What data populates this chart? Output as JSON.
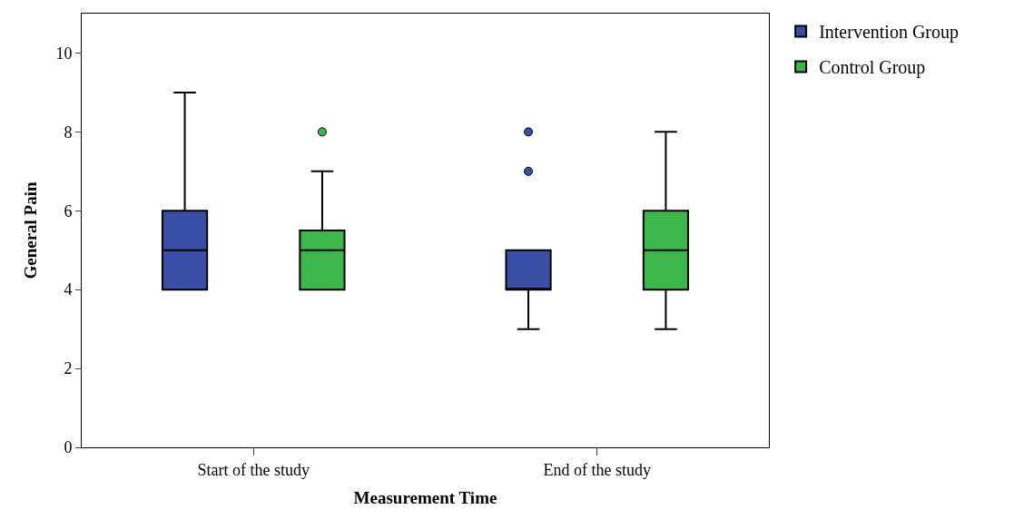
{
  "chart_data": {
    "type": "box",
    "xlabel": "Measurement Time",
    "ylabel": "General Pain",
    "categories": [
      "Start of the study",
      "End of the study"
    ],
    "ylim": [
      0,
      11
    ],
    "yticks": [
      0,
      2,
      4,
      6,
      8,
      10
    ],
    "legend": "top right",
    "series": [
      {
        "name": "Intervention Group",
        "color": "#3b4ea6",
        "boxes": [
          {
            "low": 4,
            "q1": 4,
            "median": 5,
            "q3": 6,
            "high": 9
          },
          {
            "low": 3,
            "q1": 4,
            "median": 4,
            "q3": 5,
            "high": 5,
            "outliers": [
              7,
              8
            ]
          }
        ]
      },
      {
        "name": "Control Group",
        "color": "#3cb54a",
        "boxes": [
          {
            "low": 4,
            "q1": 4,
            "median": 5,
            "q3": 5.5,
            "high": 7,
            "outliers": [
              8
            ]
          },
          {
            "low": 3,
            "q1": 4,
            "median": 5,
            "q3": 6,
            "high": 8
          }
        ]
      }
    ]
  }
}
